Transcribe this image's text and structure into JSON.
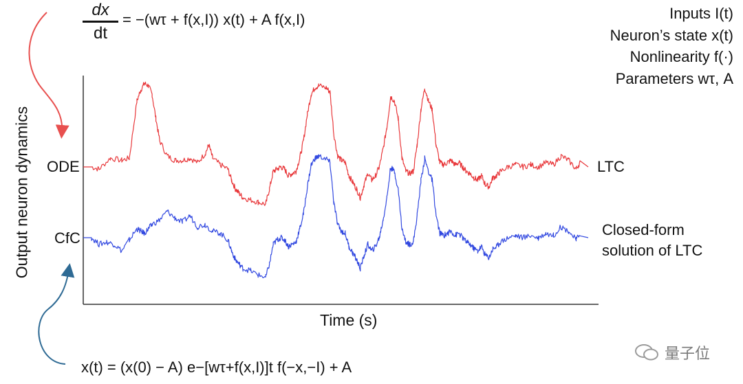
{
  "equations": {
    "top_numerator": "dx",
    "top_denominator": "dt",
    "top_rhs": "= −(wτ + f(x,I)) x(t) + A f(x,I)",
    "bottom": "x(t) = (x(0) − A) e−[wτ+f(x,I)]t f(−x,−I) + A"
  },
  "legend_top": [
    "Inputs I(t)",
    "Neuron’s state x(t)",
    "Nonlinearity f(·)",
    "Parameters wτ, A"
  ],
  "watermark": "量子位",
  "chart_data": {
    "type": "line",
    "xlabel": "Time (s)",
    "ylabel": "Output neuron dynamics",
    "row_labels": {
      "top": "ODE",
      "bottom": "CfC"
    },
    "series": [
      {
        "name": "LTC",
        "color": "#e8373a",
        "baseline": 0,
        "knots": [
          [
            0,
            0
          ],
          [
            2,
            -1
          ],
          [
            5,
            4
          ],
          [
            8,
            3
          ],
          [
            10,
            4
          ],
          [
            12,
            30
          ],
          [
            13,
            35
          ],
          [
            14,
            38
          ],
          [
            15,
            37
          ],
          [
            16,
            33
          ],
          [
            17,
            22
          ],
          [
            18,
            12
          ],
          [
            20,
            5
          ],
          [
            22,
            3
          ],
          [
            24,
            3
          ],
          [
            26,
            4
          ],
          [
            28,
            2
          ],
          [
            30,
            6
          ],
          [
            31,
            10
          ],
          [
            32,
            4
          ],
          [
            34,
            1
          ],
          [
            36,
            -1
          ],
          [
            37,
            -6
          ],
          [
            38,
            -10
          ],
          [
            39,
            -12
          ],
          [
            40,
            -14
          ],
          [
            42,
            -15
          ],
          [
            44,
            -16
          ],
          [
            46,
            -17
          ],
          [
            47,
            -10
          ],
          [
            48,
            -2
          ],
          [
            49,
            -1
          ],
          [
            50,
            0
          ],
          [
            51,
            -1
          ],
          [
            52,
            -4
          ],
          [
            53,
            -3
          ],
          [
            54,
            -2
          ],
          [
            55,
            4
          ],
          [
            56,
            12
          ],
          [
            57,
            24
          ],
          [
            58,
            33
          ],
          [
            59,
            36
          ],
          [
            60,
            37
          ],
          [
            62,
            36
          ],
          [
            63,
            34
          ],
          [
            64,
            15
          ],
          [
            65,
            5
          ],
          [
            66,
            3
          ],
          [
            67,
            2
          ],
          [
            68,
            -4
          ],
          [
            69,
            -7
          ],
          [
            70,
            -10
          ],
          [
            71,
            -14
          ],
          [
            72,
            -8
          ],
          [
            73,
            -3
          ],
          [
            74,
            -6
          ],
          [
            75,
            -4
          ],
          [
            76,
            0
          ],
          [
            77,
            8
          ],
          [
            78,
            18
          ],
          [
            79,
            32
          ],
          [
            80,
            30
          ],
          [
            81,
            22
          ],
          [
            82,
            4
          ],
          [
            83,
            -2
          ],
          [
            84,
            -3
          ],
          [
            85,
            -2
          ],
          [
            86,
            10
          ],
          [
            87,
            26
          ],
          [
            88,
            36
          ],
          [
            89,
            30
          ],
          [
            90,
            26
          ],
          [
            91,
            10
          ],
          [
            92,
            2
          ],
          [
            93,
            1
          ],
          [
            94,
            2
          ],
          [
            95,
            3
          ],
          [
            96,
            1
          ],
          [
            97,
            2
          ],
          [
            98,
            0
          ],
          [
            99,
            -2
          ],
          [
            100,
            -3
          ],
          [
            101,
            -5
          ],
          [
            102,
            -6
          ],
          [
            103,
            -4
          ],
          [
            104,
            -8
          ],
          [
            105,
            -9
          ],
          [
            106,
            -5
          ],
          [
            107,
            -4
          ],
          [
            108,
            -2
          ],
          [
            110,
            0
          ],
          [
            112,
            1
          ],
          [
            114,
            0
          ],
          [
            116,
            1
          ],
          [
            118,
            0
          ],
          [
            120,
            2
          ],
          [
            122,
            1
          ],
          [
            124,
            5
          ],
          [
            126,
            3
          ],
          [
            128,
            -1
          ],
          [
            129,
            2
          ]
        ]
      },
      {
        "name": "Closed-form solution of LTC",
        "color": "#3148e0",
        "baseline": 0,
        "knots": [
          [
            0,
            0
          ],
          [
            2,
            -3
          ],
          [
            4,
            -2
          ],
          [
            6,
            -3
          ],
          [
            8,
            -6
          ],
          [
            10,
            -1
          ],
          [
            12,
            4
          ],
          [
            13,
            3
          ],
          [
            14,
            2
          ],
          [
            15,
            4
          ],
          [
            16,
            6
          ],
          [
            18,
            8
          ],
          [
            20,
            12
          ],
          [
            22,
            9
          ],
          [
            24,
            7
          ],
          [
            26,
            10
          ],
          [
            28,
            5
          ],
          [
            30,
            6
          ],
          [
            32,
            3
          ],
          [
            34,
            2
          ],
          [
            36,
            -1
          ],
          [
            37,
            -6
          ],
          [
            38,
            -10
          ],
          [
            39,
            -12
          ],
          [
            40,
            -14
          ],
          [
            42,
            -15
          ],
          [
            44,
            -17
          ],
          [
            46,
            -18
          ],
          [
            47,
            -12
          ],
          [
            48,
            -3
          ],
          [
            49,
            -1
          ],
          [
            50,
            0
          ],
          [
            51,
            -1
          ],
          [
            52,
            -4
          ],
          [
            53,
            -3
          ],
          [
            54,
            -2
          ],
          [
            55,
            4
          ],
          [
            56,
            11
          ],
          [
            57,
            23
          ],
          [
            58,
            33
          ],
          [
            59,
            36
          ],
          [
            60,
            37
          ],
          [
            62,
            36
          ],
          [
            63,
            34
          ],
          [
            64,
            16
          ],
          [
            65,
            6
          ],
          [
            66,
            3
          ],
          [
            67,
            2
          ],
          [
            68,
            -4
          ],
          [
            69,
            -7
          ],
          [
            70,
            -10
          ],
          [
            71,
            -14
          ],
          [
            72,
            -8
          ],
          [
            73,
            -3
          ],
          [
            74,
            -6
          ],
          [
            75,
            -4
          ],
          [
            76,
            0
          ],
          [
            77,
            8
          ],
          [
            78,
            18
          ],
          [
            79,
            32
          ],
          [
            80,
            30
          ],
          [
            81,
            22
          ],
          [
            82,
            4
          ],
          [
            83,
            -2
          ],
          [
            84,
            -3
          ],
          [
            85,
            -2
          ],
          [
            86,
            10
          ],
          [
            87,
            26
          ],
          [
            88,
            36
          ],
          [
            89,
            30
          ],
          [
            90,
            26
          ],
          [
            91,
            10
          ],
          [
            92,
            2
          ],
          [
            93,
            1
          ],
          [
            94,
            2
          ],
          [
            95,
            3
          ],
          [
            96,
            1
          ],
          [
            97,
            2
          ],
          [
            98,
            0
          ],
          [
            99,
            -2
          ],
          [
            100,
            -3
          ],
          [
            101,
            -5
          ],
          [
            102,
            -6
          ],
          [
            103,
            -4
          ],
          [
            104,
            -8
          ],
          [
            105,
            -9
          ],
          [
            106,
            -5
          ],
          [
            107,
            -4
          ],
          [
            108,
            -2
          ],
          [
            110,
            0
          ],
          [
            112,
            1
          ],
          [
            114,
            0
          ],
          [
            116,
            1
          ],
          [
            118,
            0
          ],
          [
            120,
            2
          ],
          [
            122,
            1
          ],
          [
            124,
            5
          ],
          [
            126,
            3
          ],
          [
            128,
            -1
          ],
          [
            129,
            2
          ]
        ]
      }
    ],
    "xlim": [
      0,
      129
    ],
    "grid": false,
    "ticks": false
  }
}
